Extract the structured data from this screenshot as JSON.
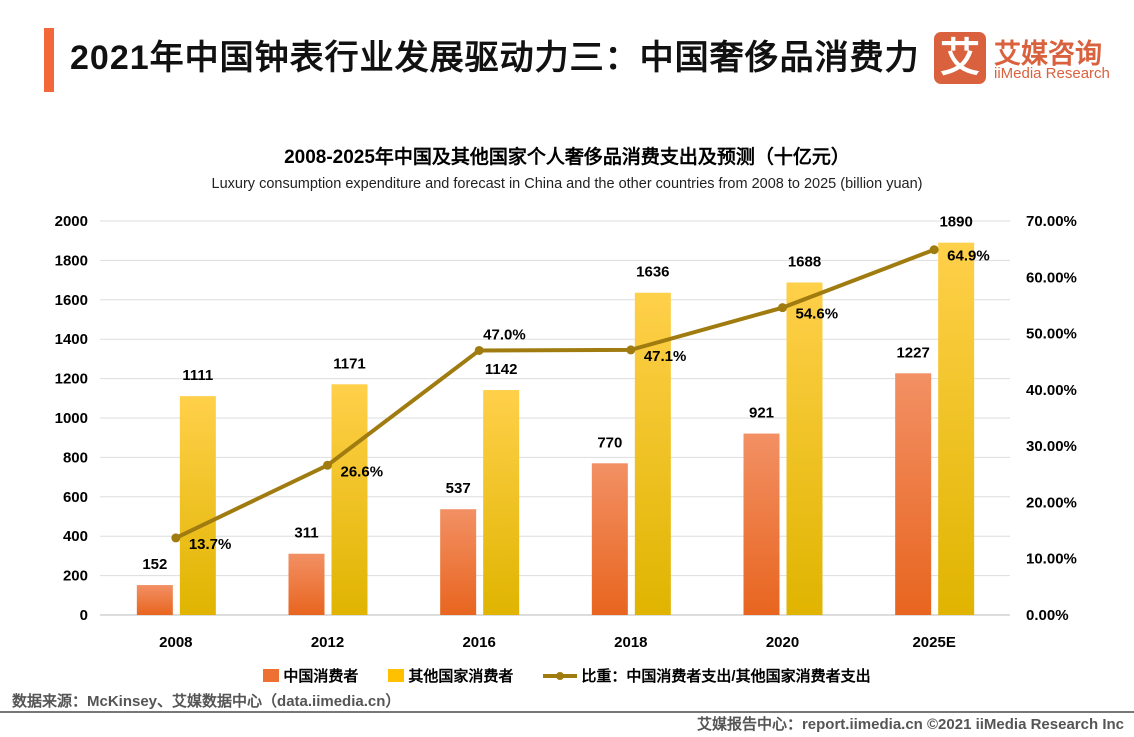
{
  "header": {
    "title": "2021年中国钟表行业发展驱动力三：中国奢侈品消费力",
    "logo_mark": "艾",
    "logo_cn": "艾媒咨询",
    "logo_en": "iiMedia Research"
  },
  "chart_data": {
    "type": "bar+line",
    "title": "2008-2025年中国及其他国家个人奢侈品消费支出及预测（十亿元）",
    "subtitle": "Luxury consumption expenditure and forecast in China and the other countries from 2008 to 2025 (billion yuan)",
    "categories": [
      "2008",
      "2012",
      "2016",
      "2018",
      "2020",
      "2025E"
    ],
    "series": [
      {
        "name": "中国消费者",
        "type": "bar",
        "color": "#ee7033",
        "values": [
          152,
          311,
          537,
          770,
          921,
          1227
        ]
      },
      {
        "name": "其他国家消费者",
        "type": "bar",
        "color": "#ffc000",
        "values": [
          1111,
          1171,
          1142,
          1636,
          1688,
          1890
        ]
      },
      {
        "name": "比重：中国消费者支出/其他国家消费者支出",
        "type": "line",
        "color": "#a07c10",
        "axis": "right",
        "values": [
          13.7,
          26.6,
          47.0,
          47.1,
          54.6,
          64.9
        ],
        "labels": [
          "13.7%",
          "26.6%",
          "47.0%",
          "47.1%",
          "54.6%",
          "64.9%"
        ]
      }
    ],
    "ylim": [
      0,
      2000
    ],
    "yticks": [
      "0",
      "200",
      "400",
      "600",
      "800",
      "1000",
      "1200",
      "1400",
      "1600",
      "1800",
      "2000"
    ],
    "y2lim": [
      0,
      70
    ],
    "y2ticks": [
      "0.00%",
      "10.00%",
      "20.00%",
      "30.00%",
      "40.00%",
      "50.00%",
      "60.00%",
      "70.00%"
    ],
    "grid": true,
    "legend": "bottom"
  },
  "footer": {
    "source": "数据来源：McKinsey、艾媒数据中心（data.iimedia.cn）",
    "credit": "艾媒报告中心：report.iimedia.cn  ©2021  iiMedia Research  Inc"
  }
}
